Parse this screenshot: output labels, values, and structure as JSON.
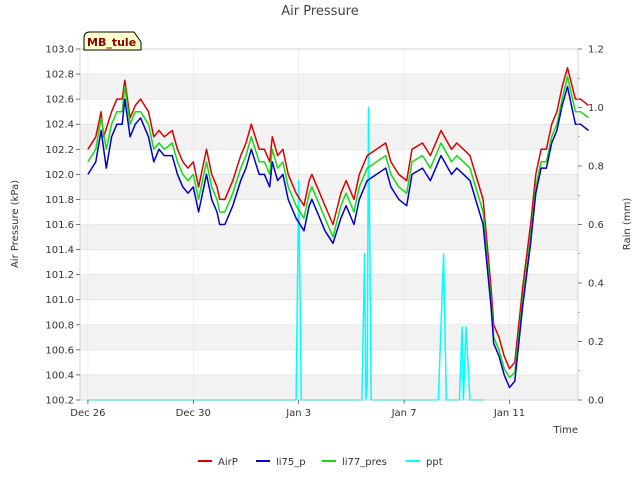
{
  "chart_data": {
    "type": "line",
    "title": "Air Pressure",
    "station_label": "MB_tule",
    "xlabel": "Time",
    "ylabel": "Air Pressure (kPa)",
    "y2label": "Rain (mm)",
    "ylim": [
      100.2,
      103.0
    ],
    "y2lim": [
      0.0,
      1.2
    ],
    "xlim_days": [
      -0.3,
      11.9
    ],
    "grid": true,
    "legend_placement": "bottom-center",
    "xticks": [
      {
        "day": 0,
        "label": "Dec 26"
      },
      {
        "day": 4,
        "label": "Dec 30"
      },
      {
        "day": 8,
        "label": "Jan 3"
      },
      {
        "day": 12,
        "label": "Jan 7"
      },
      {
        "day": 16,
        "label": "Jan 11"
      }
    ],
    "yticks": [
      "100.2",
      "100.4",
      "100.6",
      "100.8",
      "101.0",
      "101.2",
      "101.4",
      "101.6",
      "101.8",
      "102.0",
      "102.2",
      "102.4",
      "102.6",
      "102.8",
      "103.0"
    ],
    "y2ticks": [
      "0.0",
      "0.2",
      "0.4",
      "0.6",
      "0.8",
      "1.0",
      "1.2"
    ],
    "series": [
      {
        "name": "AirP",
        "axis": "left",
        "color": "#dd0000",
        "x": [
          0,
          0.3,
          0.5,
          0.6,
          0.9,
          1.1,
          1.3,
          1.4,
          1.6,
          1.8,
          2.0,
          2.3,
          2.5,
          2.7,
          2.9,
          3.2,
          3.4,
          3.6,
          3.8,
          4.0,
          4.2,
          4.5,
          4.7,
          4.9,
          5.0,
          5.2,
          5.5,
          5.8,
          6.0,
          6.2,
          6.5,
          6.7,
          6.9,
          7.0,
          7.2,
          7.4,
          7.6,
          7.9,
          8.2,
          8.4,
          8.5,
          8.8,
          9.0,
          9.3,
          9.6,
          9.8,
          10.1,
          10.3,
          10.6,
          11.3,
          11.5,
          11.8,
          12.1,
          12.3,
          12.7,
          13.0,
          13.4,
          13.8,
          14.0,
          14.5,
          15.0,
          15.3,
          15.4,
          15.6,
          15.8,
          16.0,
          16.2,
          16.5,
          16.8,
          17.0,
          17.2,
          17.4,
          17.6,
          17.8,
          18.0,
          18.2,
          18.5,
          18.7,
          19.0
        ],
        "y": [
          102.2,
          102.3,
          102.5,
          102.3,
          102.5,
          102.6,
          102.6,
          102.75,
          102.45,
          102.55,
          102.6,
          102.5,
          102.3,
          102.35,
          102.3,
          102.35,
          102.2,
          102.1,
          102.05,
          102.1,
          101.9,
          102.2,
          102.0,
          101.9,
          101.8,
          101.8,
          101.95,
          102.15,
          102.25,
          102.4,
          102.2,
          102.2,
          102.1,
          102.3,
          102.15,
          102.2,
          102.0,
          101.85,
          101.75,
          101.95,
          102.0,
          101.85,
          101.75,
          101.6,
          101.85,
          101.95,
          101.8,
          102.0,
          102.15,
          102.25,
          102.1,
          102.0,
          101.95,
          102.2,
          102.25,
          102.15,
          102.35,
          102.2,
          102.25,
          102.15,
          101.8,
          101.1,
          100.8,
          100.7,
          100.55,
          100.45,
          100.5,
          101.1,
          101.6,
          102.0,
          102.2,
          102.2,
          102.4,
          102.5,
          102.7,
          102.85,
          102.6,
          102.6,
          102.55
        ],
        "y_visible": [
          102.2,
          102.3,
          102.5,
          102.3,
          102.5,
          102.6,
          102.6,
          102.75,
          102.45,
          102.55,
          102.6,
          102.5,
          102.3,
          102.35,
          102.3,
          102.35,
          102.2,
          102.1,
          102.05,
          102.1,
          101.9,
          102.2,
          102.0,
          101.9,
          101.8,
          101.8,
          101.95,
          102.15,
          102.25,
          102.4,
          102.2,
          102.2,
          102.1,
          102.3,
          102.15,
          102.2,
          102.0,
          101.85,
          101.75,
          101.95,
          102.0,
          101.85,
          101.75,
          101.6,
          101.85,
          101.95,
          101.8,
          102.0,
          102.15,
          102.25,
          102.1,
          102.0,
          101.95,
          102.2,
          102.25,
          102.15,
          102.35,
          102.2,
          102.25,
          102.15,
          101.8,
          101.1,
          100.8,
          100.7,
          100.55,
          100.45,
          100.5,
          101.1,
          101.6,
          102.0,
          102.2,
          102.2,
          102.4,
          102.5,
          102.7,
          102.85,
          102.6,
          102.6,
          102.55
        ]
      },
      {
        "name": "li75_p",
        "axis": "left",
        "color": "#0000cc",
        "x": [
          0,
          0.3,
          0.5,
          0.7,
          0.9,
          1.1,
          1.3,
          1.4,
          1.6,
          1.8,
          2.0,
          2.3,
          2.5,
          2.7,
          2.9,
          3.2,
          3.4,
          3.6,
          3.8,
          4.0,
          4.2,
          4.5,
          4.7,
          4.9,
          5.0,
          5.2,
          5.5,
          5.8,
          6.0,
          6.2,
          6.5,
          6.7,
          6.9,
          7.0,
          7.2,
          7.4,
          7.6,
          7.9,
          8.2,
          8.4,
          8.5,
          8.8,
          9.0,
          9.3,
          9.6,
          9.8,
          10.1,
          10.3,
          10.6,
          11.3,
          11.5,
          11.8,
          12.1,
          12.3,
          12.7,
          13.0,
          13.4,
          13.8,
          14.0,
          14.5,
          15.0,
          15.3,
          15.4,
          15.6,
          15.8,
          16.0,
          16.2,
          16.5,
          16.8,
          17.0,
          17.2,
          17.4,
          17.6,
          17.8,
          18.0,
          18.2,
          18.5,
          18.7,
          19.0
        ],
        "y": [
          102.0,
          102.1,
          102.35,
          102.05,
          102.3,
          102.4,
          102.4,
          102.6,
          102.3,
          102.4,
          102.45,
          102.3,
          102.1,
          102.2,
          102.15,
          102.15,
          102.0,
          101.9,
          101.85,
          101.9,
          101.7,
          102.0,
          101.8,
          101.7,
          101.6,
          101.6,
          101.75,
          101.95,
          102.05,
          102.2,
          102.0,
          102.0,
          101.9,
          102.1,
          101.95,
          102.0,
          101.8,
          101.65,
          101.55,
          101.75,
          101.8,
          101.65,
          101.55,
          101.45,
          101.65,
          101.75,
          101.6,
          101.8,
          101.95,
          102.05,
          101.9,
          101.8,
          101.75,
          102.0,
          102.05,
          101.95,
          102.15,
          102.0,
          102.05,
          101.95,
          101.6,
          100.95,
          100.65,
          100.55,
          100.4,
          100.3,
          100.35,
          100.95,
          101.45,
          101.85,
          102.05,
          102.05,
          102.25,
          102.35,
          102.55,
          102.7,
          102.4,
          102.4,
          102.35
        ]
      },
      {
        "name": "li77_pres",
        "axis": "left",
        "color": "#11dd11",
        "x": [
          0,
          0.3,
          0.5,
          0.7,
          0.9,
          1.1,
          1.3,
          1.4,
          1.6,
          1.8,
          2.0,
          2.3,
          2.5,
          2.7,
          2.9,
          3.2,
          3.4,
          3.6,
          3.8,
          4.0,
          4.2,
          4.5,
          4.7,
          4.9,
          5.0,
          5.2,
          5.5,
          5.8,
          6.0,
          6.2,
          6.5,
          6.7,
          6.9,
          7.0,
          7.2,
          7.4,
          7.6,
          7.9,
          8.2,
          8.4,
          8.5,
          8.8,
          9.0,
          9.3,
          9.6,
          9.8,
          10.1,
          10.3,
          10.6,
          11.3,
          11.5,
          11.8,
          12.1,
          12.3,
          12.7,
          13.0,
          13.4,
          13.8,
          14.0,
          14.5,
          15.0,
          15.3,
          15.4,
          15.6,
          15.8,
          16.0,
          16.2,
          16.5,
          16.8,
          17.0,
          17.2,
          17.4,
          17.6,
          17.8,
          18.0,
          18.2,
          18.5,
          18.7,
          19.0
        ],
        "y": [
          102.1,
          102.2,
          102.45,
          102.2,
          102.4,
          102.5,
          102.5,
          102.7,
          102.4,
          102.5,
          102.5,
          102.4,
          102.2,
          102.25,
          102.2,
          102.25,
          102.1,
          102.0,
          101.95,
          102.0,
          101.8,
          102.1,
          101.9,
          101.8,
          101.7,
          101.7,
          101.85,
          102.05,
          102.15,
          102.3,
          102.1,
          102.1,
          102.0,
          102.2,
          102.05,
          102.1,
          101.9,
          101.75,
          101.65,
          101.85,
          101.9,
          101.75,
          101.65,
          101.5,
          101.75,
          101.85,
          101.7,
          101.9,
          102.05,
          102.15,
          102.0,
          101.9,
          101.85,
          102.1,
          102.15,
          102.05,
          102.25,
          102.1,
          102.15,
          102.05,
          101.7,
          101.0,
          100.7,
          100.6,
          100.45,
          100.38,
          100.42,
          101.0,
          101.5,
          101.9,
          102.1,
          102.1,
          102.3,
          102.4,
          102.6,
          102.78,
          102.5,
          102.5,
          102.45
        ]
      },
      {
        "name": "ppt",
        "axis": "right",
        "color": "#00ffff",
        "x": [
          0,
          7.9,
          8.0,
          8.1,
          8.6,
          9.4,
          10.4,
          10.5,
          10.55,
          10.6,
          10.65,
          10.75,
          10.8,
          10.85,
          10.95,
          11.8,
          12.5,
          13.2,
          13.3,
          13.4,
          13.5,
          13.6,
          14.1,
          14.2,
          14.25,
          14.35,
          14.5,
          15.0
        ],
        "y": [
          0,
          0,
          0.75,
          0,
          0,
          0,
          0,
          0.5,
          0,
          0.05,
          1.0,
          0,
          0,
          0,
          0,
          0,
          0,
          0,
          0,
          0.25,
          0.5,
          0,
          0,
          0.25,
          0,
          0.25,
          0,
          0
        ]
      }
    ]
  }
}
